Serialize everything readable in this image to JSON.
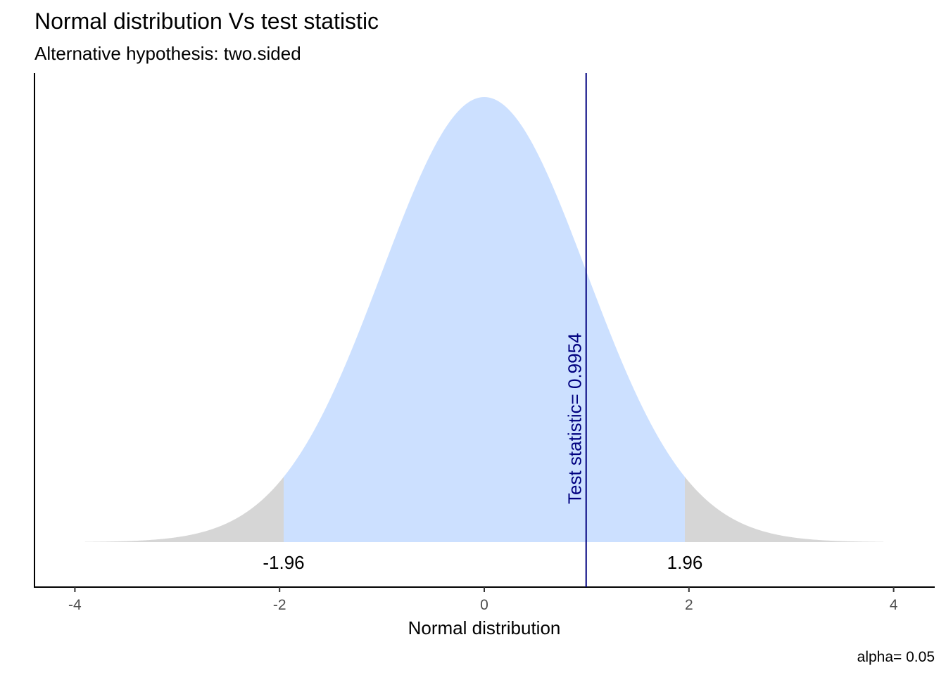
{
  "chart_data": {
    "type": "area",
    "title": "Normal distribution Vs test statistic",
    "subtitle": "Alternative hypothesis: two.sided",
    "xlabel": "Normal distribution",
    "ylabel": "",
    "xlim": [
      -4.2,
      4.2
    ],
    "x_range_curve": [
      -3.9,
      3.9
    ],
    "x_ticks": [
      -4,
      -2,
      0,
      2,
      4
    ],
    "x_tick_labels": [
      "-4",
      "-2",
      "0",
      "2",
      "4"
    ],
    "critical_values": [
      -1.96,
      1.96
    ],
    "critical_labels": [
      "-1.96",
      "1.96"
    ],
    "test_statistic": 0.9954,
    "test_statistic_label": "Test statistic= 0.9954",
    "caption": "alpha= 0.05",
    "grid": false,
    "colors": {
      "acceptance": "#cce0ff",
      "rejection": "#d6d6d6",
      "test_line": "#00007f",
      "text": "#000000",
      "tick_text": "#4d4d4d"
    }
  }
}
